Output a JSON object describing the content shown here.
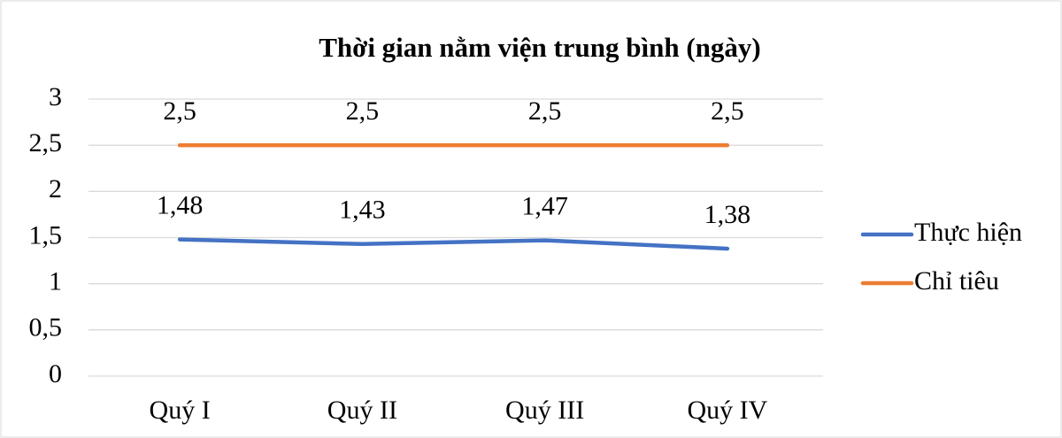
{
  "chart_data": {
    "type": "line",
    "title": "Thời gian nằm viện trung bình (ngày)",
    "categories": [
      "Quý I",
      "Quý II",
      "Quý III",
      "Quý IV"
    ],
    "series": [
      {
        "name": "Thực hiện",
        "color": "#4472c4",
        "values": [
          1.48,
          1.43,
          1.47,
          1.38
        ],
        "value_labels": [
          "1,48",
          "1,43",
          "1,47",
          "1,38"
        ]
      },
      {
        "name": "Chỉ tiêu",
        "color": "#ed7d31",
        "values": [
          2.5,
          2.5,
          2.5,
          2.5
        ],
        "value_labels": [
          "2,5",
          "2,5",
          "2,5",
          "2,5"
        ]
      }
    ],
    "ylim": [
      0,
      3
    ],
    "yticks": [
      0,
      {
        "value": 0.5,
        "label": "0,5"
      },
      1,
      {
        "value": 1.5,
        "label": "1,5"
      },
      2,
      {
        "value": 2.5,
        "label": "2,5"
      },
      3
    ],
    "grid": true,
    "legend": "right"
  }
}
